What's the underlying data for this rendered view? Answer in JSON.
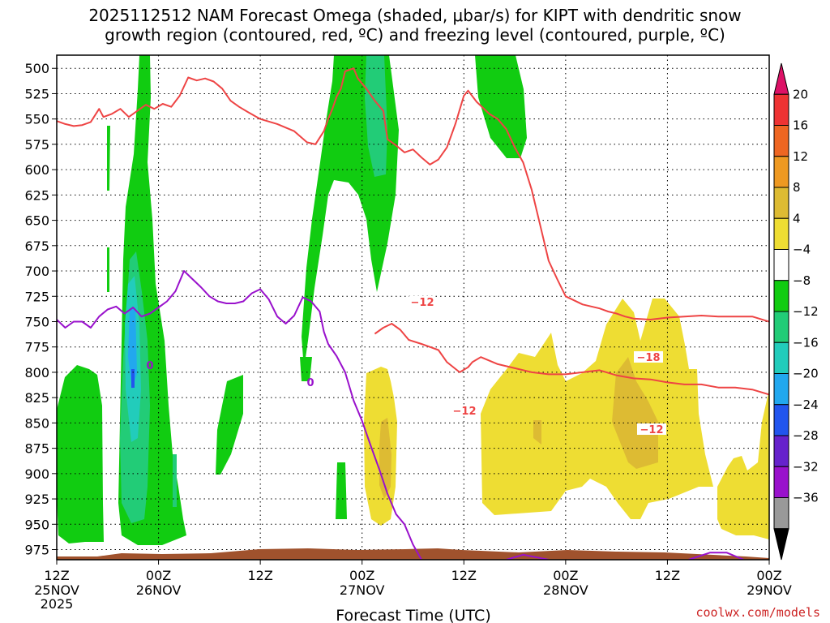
{
  "chart_data": {
    "type": "contour",
    "title_line1": "2025112512 NAM Forecast Omega (shaded, μbar/s) for KIPT with dendritic snow",
    "title_line2": "growth region (contoured, red, ºC) and freezing level (contoured, purple, ºC)",
    "xlabel": "Forecast Time (UTC)",
    "ylabel": "",
    "y_ticks": [
      500,
      525,
      550,
      575,
      600,
      625,
      650,
      675,
      700,
      725,
      750,
      775,
      800,
      825,
      850,
      875,
      900,
      925,
      950,
      975
    ],
    "ylim": [
      487,
      985
    ],
    "x_ticks": [
      {
        "hour": 0,
        "time": "12Z",
        "date": "25NOV",
        "year": "2025"
      },
      {
        "hour": 12,
        "time": "00Z",
        "date": "26NOV",
        "year": ""
      },
      {
        "hour": 24,
        "time": "12Z",
        "date": "",
        "year": ""
      },
      {
        "hour": 36,
        "time": "00Z",
        "date": "27NOV",
        "year": ""
      },
      {
        "hour": 48,
        "time": "12Z",
        "date": "",
        "year": ""
      },
      {
        "hour": 60,
        "time": "00Z",
        "date": "28NOV",
        "year": ""
      },
      {
        "hour": 72,
        "time": "12Z",
        "date": "",
        "year": ""
      },
      {
        "hour": 84,
        "time": "00Z",
        "date": "29NOV",
        "year": ""
      }
    ],
    "xlim": [
      0,
      84
    ],
    "grid": true,
    "colorbar": {
      "labels": [
        "20",
        "16",
        "12",
        "8",
        "4",
        "−4",
        "−8",
        "−12",
        "−16",
        "−20",
        "−24",
        "−28",
        "−32",
        "−36"
      ],
      "colors": [
        "#dd1166",
        "#ee3333",
        "#ee6622",
        "#ee9922",
        "#ddbb33",
        "#eedd33",
        "#ffffff",
        "#11cc11",
        "#22cc77",
        "#22ccbb",
        "#22a8ee",
        "#2255ee",
        "#6622cc",
        "#9911cc",
        "#999999",
        "#000000"
      ]
    },
    "contour_labels": {
      "red": [
        "−12",
        "−12",
        "−18",
        "−12"
      ],
      "purple": [
        "0",
        "0"
      ]
    },
    "series": [
      {
        "color": "#ee4444",
        "points": [
          [
            0,
            552
          ],
          [
            1,
            555
          ],
          [
            2,
            557
          ],
          [
            3,
            556
          ],
          [
            4,
            553
          ],
          [
            5,
            540
          ],
          [
            5.5,
            548
          ],
          [
            6.5,
            545
          ],
          [
            7.5,
            540
          ],
          [
            8.5,
            548
          ],
          [
            9.5,
            542
          ],
          [
            10.5,
            536
          ],
          [
            11.5,
            540
          ],
          [
            12.5,
            535
          ],
          [
            13.5,
            538
          ],
          [
            14.5,
            527
          ],
          [
            15.5,
            509
          ],
          [
            16.5,
            512
          ],
          [
            17.5,
            510
          ],
          [
            18.5,
            513
          ],
          [
            19.5,
            520
          ],
          [
            20.5,
            532
          ],
          [
            21.5,
            538
          ],
          [
            22.5,
            543
          ],
          [
            24,
            550
          ],
          [
            26,
            555
          ],
          [
            28,
            562
          ],
          [
            29.5,
            573
          ],
          [
            30.5,
            575
          ],
          [
            31.5,
            562
          ],
          [
            32,
            550
          ],
          [
            32.5,
            540
          ],
          [
            33,
            528
          ],
          [
            33.5,
            520
          ],
          [
            34,
            503
          ],
          [
            35,
            500
          ],
          [
            35.5,
            510
          ],
          [
            36.5,
            520
          ],
          [
            37.5,
            532
          ],
          [
            38.5,
            542
          ],
          [
            39,
            570
          ],
          [
            40,
            576
          ],
          [
            41,
            583
          ],
          [
            42,
            580
          ],
          [
            43,
            588
          ],
          [
            44,
            595
          ],
          [
            45,
            590
          ],
          [
            46,
            578
          ],
          [
            47,
            555
          ],
          [
            48,
            527
          ],
          [
            48.5,
            522
          ],
          [
            49.5,
            533
          ],
          [
            51,
            545
          ],
          [
            52,
            550
          ],
          [
            53,
            560
          ],
          [
            54,
            578
          ],
          [
            55,
            593
          ],
          [
            56,
            620
          ],
          [
            57,
            655
          ],
          [
            58,
            690
          ],
          [
            59,
            708
          ],
          [
            60,
            725
          ],
          [
            62,
            733
          ],
          [
            64,
            737
          ],
          [
            65,
            740
          ],
          [
            66,
            742
          ],
          [
            67,
            745
          ],
          [
            68,
            747
          ],
          [
            70,
            748
          ],
          [
            72,
            746
          ],
          [
            74,
            745
          ],
          [
            76,
            744
          ],
          [
            78,
            745
          ],
          [
            80,
            745
          ],
          [
            82,
            745
          ],
          [
            84,
            750
          ]
        ]
      },
      {
        "color": "#ee4444",
        "points": [
          [
            37.5,
            762
          ],
          [
            38.5,
            756
          ],
          [
            39.5,
            752
          ],
          [
            40.5,
            758
          ],
          [
            41.5,
            768
          ],
          [
            43,
            772
          ],
          [
            44,
            775
          ],
          [
            45,
            778
          ],
          [
            46,
            790
          ],
          [
            47.5,
            800
          ],
          [
            48.5,
            795
          ],
          [
            49,
            790
          ],
          [
            50,
            785
          ],
          [
            52,
            792
          ],
          [
            54,
            796
          ],
          [
            56,
            800
          ],
          [
            58,
            802
          ],
          [
            60,
            802
          ],
          [
            62,
            800
          ],
          [
            64,
            798
          ],
          [
            66,
            803
          ],
          [
            68,
            806
          ],
          [
            70,
            807
          ],
          [
            72,
            810
          ],
          [
            74,
            812
          ],
          [
            76,
            812
          ],
          [
            78,
            815
          ],
          [
            80,
            815
          ],
          [
            82,
            817
          ],
          [
            84,
            822
          ]
        ]
      },
      {
        "color": "#9911cc",
        "points": [
          [
            0,
            748
          ],
          [
            1,
            756
          ],
          [
            2,
            750
          ],
          [
            3,
            750
          ],
          [
            4,
            756
          ],
          [
            5,
            745
          ],
          [
            6,
            738
          ],
          [
            7,
            735
          ],
          [
            8,
            742
          ],
          [
            9,
            736
          ],
          [
            10,
            745
          ],
          [
            11,
            742
          ],
          [
            12,
            736
          ],
          [
            13,
            730
          ],
          [
            14,
            720
          ],
          [
            15,
            700
          ],
          [
            16,
            708
          ],
          [
            17,
            716
          ],
          [
            18,
            725
          ],
          [
            19,
            730
          ],
          [
            20,
            732
          ],
          [
            21,
            732
          ],
          [
            22,
            730
          ],
          [
            23,
            722
          ],
          [
            24,
            718
          ],
          [
            25,
            728
          ],
          [
            26,
            745
          ],
          [
            27,
            752
          ],
          [
            28,
            744
          ],
          [
            29,
            726
          ],
          [
            30,
            730
          ],
          [
            31,
            740
          ],
          [
            31.5,
            760
          ],
          [
            32,
            772
          ],
          [
            32.5,
            778
          ],
          [
            33,
            784
          ],
          [
            34,
            800
          ],
          [
            35,
            828
          ],
          [
            36,
            848
          ],
          [
            37,
            872
          ],
          [
            38,
            895
          ],
          [
            39,
            920
          ],
          [
            40,
            940
          ],
          [
            41,
            950
          ],
          [
            42,
            970
          ],
          [
            43,
            985
          ]
        ]
      },
      {
        "color": "#9911cc",
        "points": [
          [
            53,
            985
          ],
          [
            55,
            980
          ],
          [
            58,
            985
          ]
        ]
      },
      {
        "color": "#9911cc",
        "points": [
          [
            74.5,
            985
          ],
          [
            77,
            978
          ],
          [
            79,
            978
          ],
          [
            81,
            985
          ]
        ]
      }
    ]
  },
  "credit": "coolwx.com/models"
}
